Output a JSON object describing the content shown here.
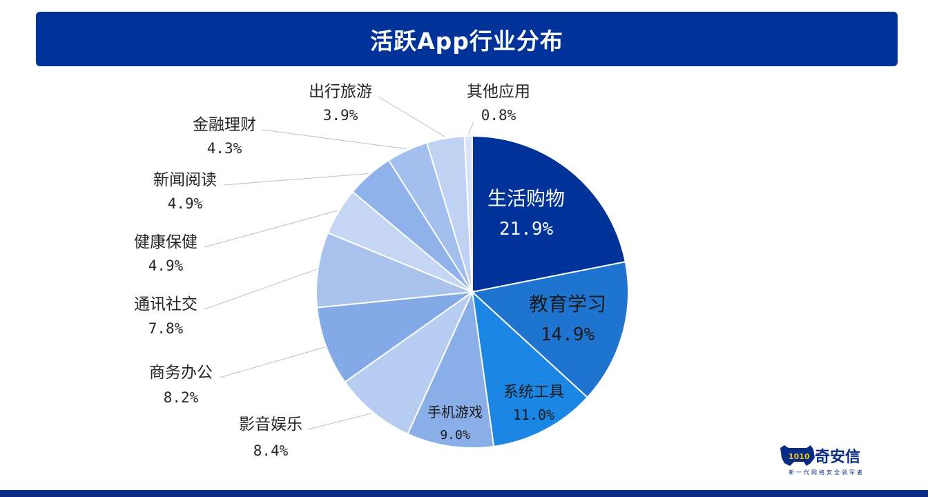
{
  "header": {
    "title": "活跃App行业分布"
  },
  "chart_data": {
    "type": "pie",
    "title": "活跃App行业分布",
    "start_angle_deg": 0,
    "direction": "clockwise",
    "slices": [
      {
        "label": "生活购物",
        "value": 21.9,
        "display": "21.9%",
        "color": "#003399",
        "text_color": "#ffffff"
      },
      {
        "label": "教育学习",
        "value": 14.9,
        "display": "14.9%",
        "color": "#1f74cf",
        "text_color": "#1a1a1a"
      },
      {
        "label": "系统工具",
        "value": 11.0,
        "display": "11.0%",
        "color": "#1c86e4",
        "text_color": "#1a1a1a"
      },
      {
        "label": "手机游戏",
        "value": 9.0,
        "display": "9.0%",
        "color": "#89aee8",
        "text_color": "#1a1a1a"
      },
      {
        "label": "影音娱乐",
        "value": 8.4,
        "display": "8.4%",
        "color": "#b7ccf1",
        "text_color": "#262626"
      },
      {
        "label": "商务办公",
        "value": 8.2,
        "display": "8.2%",
        "color": "#83a9e6",
        "text_color": "#262626"
      },
      {
        "label": "通讯社交",
        "value": 7.8,
        "display": "7.8%",
        "color": "#a9c3ed",
        "text_color": "#262626"
      },
      {
        "label": "健康保健",
        "value": 4.9,
        "display": "4.9%",
        "color": "#c4d6f3",
        "text_color": "#262626"
      },
      {
        "label": "新闻阅读",
        "value": 4.9,
        "display": "4.9%",
        "color": "#8eb2e9",
        "text_color": "#262626"
      },
      {
        "label": "金融理财",
        "value": 4.3,
        "display": "4.3%",
        "color": "#a2bfed",
        "text_color": "#262626"
      },
      {
        "label": "出行旅游",
        "value": 3.9,
        "display": "3.9%",
        "color": "#bfd2f4",
        "text_color": "#262626"
      },
      {
        "label": "其他应用",
        "value": 0.8,
        "display": "0.8%",
        "color": "#d7e3f8",
        "text_color": "#262626"
      }
    ]
  },
  "logo": {
    "name": "奇安信",
    "slogan": "新一代网络安全领军者",
    "mark_text": "1010"
  },
  "colors": {
    "header_bg": "#003399",
    "bottom_bar": "#0a2b84",
    "leader_line": "#bfbfbf"
  }
}
